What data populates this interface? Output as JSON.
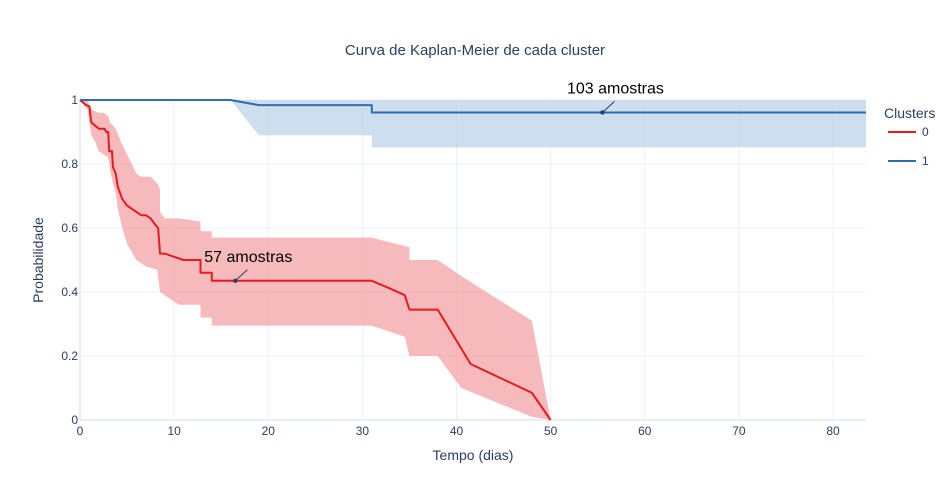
{
  "chart_data": {
    "type": "line",
    "title": "Curva de Kaplan-Meier de cada cluster",
    "xlabel": "Tempo (dias)",
    "ylabel": "Probabilidade",
    "xlim": [
      0,
      83.5
    ],
    "ylim": [
      0,
      1
    ],
    "x_ticks": [
      0,
      10,
      20,
      30,
      40,
      50,
      60,
      70,
      80
    ],
    "y_ticks": [
      0,
      0.2,
      0.4,
      0.6,
      0.8,
      1
    ],
    "y_tick_labels": [
      "0",
      "0.2",
      "0.4",
      "0.6",
      "0.8",
      "1"
    ],
    "grid": true,
    "legend": {
      "title": "Clusters",
      "placement": "right"
    },
    "series": [
      {
        "name": "0",
        "color": "#e8191f",
        "band_color": "#f4a3a5",
        "points": [
          [
            0,
            1
          ],
          [
            0.6,
            0.985
          ],
          [
            1,
            0.98
          ],
          [
            1.2,
            0.93
          ],
          [
            1.6,
            0.92
          ],
          [
            2,
            0.91
          ],
          [
            2.6,
            0.91
          ],
          [
            2.8,
            0.9
          ],
          [
            3,
            0.9
          ],
          [
            3.1,
            0.84
          ],
          [
            3.4,
            0.84
          ],
          [
            3.5,
            0.79
          ],
          [
            3.8,
            0.77
          ],
          [
            4,
            0.73
          ],
          [
            4.5,
            0.69
          ],
          [
            5,
            0.67
          ],
          [
            5.5,
            0.66
          ],
          [
            6,
            0.65
          ],
          [
            6.5,
            0.64
          ],
          [
            7,
            0.64
          ],
          [
            7.5,
            0.63
          ],
          [
            8,
            0.61
          ],
          [
            8.3,
            0.6
          ],
          [
            8.5,
            0.52
          ],
          [
            9,
            0.52
          ],
          [
            10,
            0.51
          ],
          [
            11,
            0.5
          ],
          [
            12.8,
            0.5
          ],
          [
            12.8,
            0.46
          ],
          [
            14,
            0.46
          ],
          [
            14,
            0.435
          ],
          [
            31,
            0.435
          ],
          [
            33,
            0.41
          ],
          [
            34.5,
            0.39
          ],
          [
            35,
            0.345
          ],
          [
            38,
            0.345
          ],
          [
            41.5,
            0.175
          ],
          [
            48,
            0.085
          ],
          [
            50,
            0
          ]
        ],
        "upper": [
          [
            0,
            1
          ],
          [
            0.8,
            1
          ],
          [
            1.2,
            0.97
          ],
          [
            2,
            0.96
          ],
          [
            2.5,
            0.96
          ],
          [
            3,
            0.95
          ],
          [
            3.2,
            0.93
          ],
          [
            3.5,
            0.92
          ],
          [
            3.8,
            0.91
          ],
          [
            4.2,
            0.88
          ],
          [
            4.5,
            0.86
          ],
          [
            5,
            0.83
          ],
          [
            5.5,
            0.8
          ],
          [
            6,
            0.77
          ],
          [
            6.5,
            0.76
          ],
          [
            7.5,
            0.76
          ],
          [
            8.2,
            0.74
          ],
          [
            8.5,
            0.72
          ],
          [
            8.5,
            0.65
          ],
          [
            9,
            0.63
          ],
          [
            10.5,
            0.63
          ],
          [
            12.8,
            0.62
          ],
          [
            12.8,
            0.59
          ],
          [
            14,
            0.59
          ],
          [
            14,
            0.57
          ],
          [
            31,
            0.57
          ],
          [
            35,
            0.54
          ],
          [
            35,
            0.5
          ],
          [
            38,
            0.5
          ],
          [
            40.5,
            0.45
          ],
          [
            48,
            0.31
          ],
          [
            50,
            0
          ]
        ],
        "lower": [
          [
            0,
            1
          ],
          [
            0.8,
            0.97
          ],
          [
            1.2,
            0.89
          ],
          [
            1.6,
            0.87
          ],
          [
            2,
            0.84
          ],
          [
            2.5,
            0.83
          ],
          [
            3,
            0.82
          ],
          [
            3.2,
            0.78
          ],
          [
            3.5,
            0.74
          ],
          [
            3.8,
            0.71
          ],
          [
            4,
            0.66
          ],
          [
            4.5,
            0.6
          ],
          [
            5,
            0.55
          ],
          [
            6,
            0.5
          ],
          [
            7,
            0.48
          ],
          [
            8.2,
            0.47
          ],
          [
            8.5,
            0.4
          ],
          [
            9,
            0.39
          ],
          [
            10,
            0.37
          ],
          [
            10.5,
            0.36
          ],
          [
            12.8,
            0.36
          ],
          [
            12.8,
            0.32
          ],
          [
            14,
            0.32
          ],
          [
            14,
            0.295
          ],
          [
            31,
            0.295
          ],
          [
            34.5,
            0.26
          ],
          [
            35,
            0.2
          ],
          [
            38,
            0.2
          ],
          [
            40.5,
            0.1
          ],
          [
            48,
            0.01
          ],
          [
            50,
            0
          ]
        ]
      },
      {
        "name": "1",
        "color": "#2e6db0",
        "band_color": "#bcd3ea",
        "points": [
          [
            0,
            1
          ],
          [
            16,
            1
          ],
          [
            19,
            0.984
          ],
          [
            31,
            0.984
          ],
          [
            31,
            0.961
          ],
          [
            83.5,
            0.961
          ]
        ],
        "upper": [
          [
            0,
            1
          ],
          [
            83.5,
            1
          ]
        ],
        "lower": [
          [
            0,
            1
          ],
          [
            16,
            1
          ],
          [
            19,
            0.89
          ],
          [
            31,
            0.89
          ],
          [
            31,
            0.852
          ],
          [
            83.5,
            0.852
          ]
        ]
      }
    ],
    "annotations": [
      {
        "text": "57 amostras",
        "x": 16.5,
        "y": 0.435,
        "series": "0"
      },
      {
        "text": "103 amostras",
        "x": 55.5,
        "y": 0.961,
        "series": "1"
      }
    ]
  }
}
